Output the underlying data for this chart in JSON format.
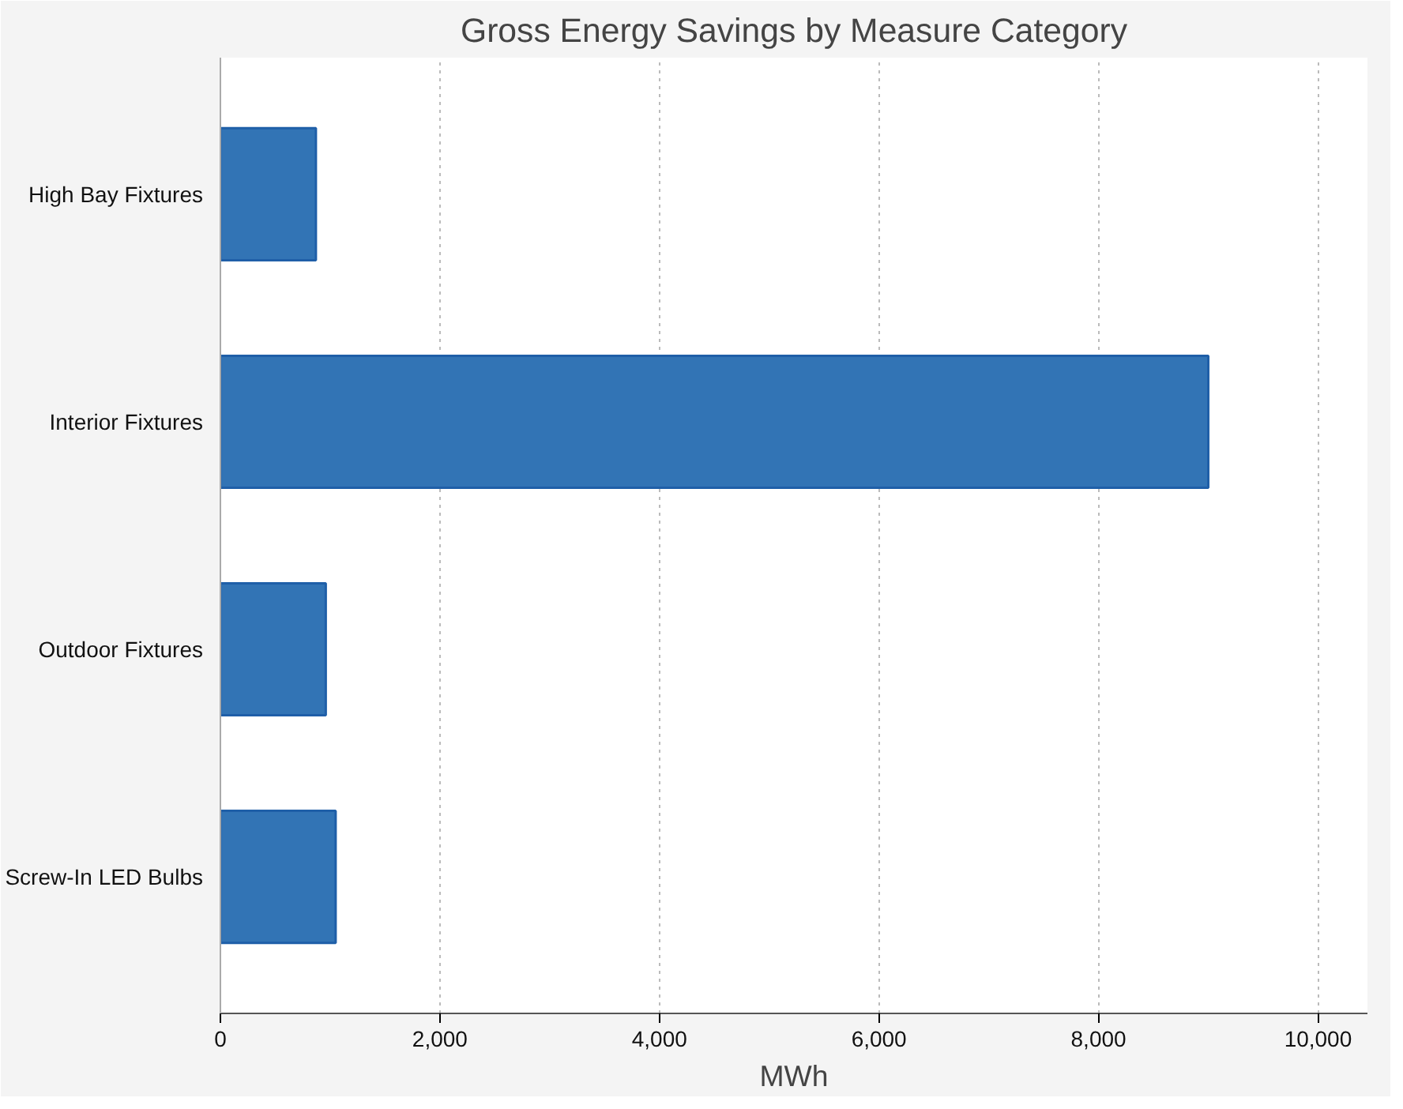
{
  "chart_data": {
    "type": "bar",
    "orientation": "horizontal",
    "title": "Gross Energy Savings by Measure Category",
    "xlabel": "MWh",
    "categories": [
      "High Bay Fixtures",
      "Interior Fixtures",
      "Outdoor Fixtures",
      "Screw-In LED Bulbs"
    ],
    "values": [
      870,
      9000,
      960,
      1050
    ],
    "color": "#3274b5",
    "xlim": [
      0,
      10450
    ],
    "xticks": [
      0,
      {
        "value": 2000,
        "label": "2,000"
      },
      {
        "value": 4000,
        "label": "4,000"
      },
      {
        "value": 6000,
        "label": "6,000"
      },
      {
        "value": 8000,
        "label": "8,000"
      },
      {
        "value": 10000,
        "label": "10,000"
      }
    ],
    "grid": "x"
  }
}
